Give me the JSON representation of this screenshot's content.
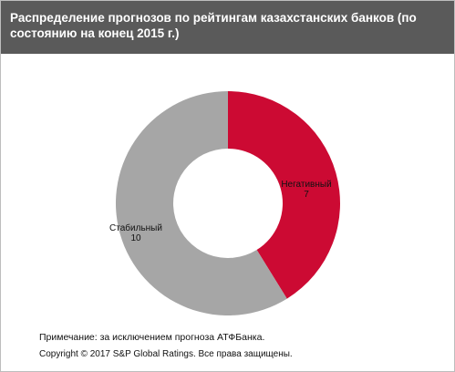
{
  "header": {
    "title": "Распределение прогнозов по рейтингам казахстанских банков (по состоянию  на конец 2015  г.)"
  },
  "chart_data": {
    "type": "pie",
    "donut": true,
    "slices": [
      {
        "label": "Негативный",
        "value": 7,
        "color": "#cc0a33"
      },
      {
        "label": "Стабильный",
        "value": 10,
        "color": "#a6a6a6"
      }
    ]
  },
  "footer": {
    "note": "Примечание: за исключением прогноза АТФБанка.",
    "copyright": "Copyright  © 2017 S&P Global Ratings. Все права защищены."
  }
}
